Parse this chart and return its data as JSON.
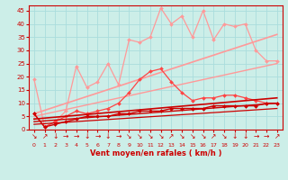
{
  "background_color": "#cceee8",
  "grid_color": "#aadddd",
  "xlabel": "Vent moyen/en rafales ( km/h )",
  "xlabel_color": "#cc0000",
  "tick_color": "#cc0000",
  "x_ticks": [
    0,
    1,
    2,
    3,
    4,
    5,
    6,
    7,
    8,
    9,
    10,
    11,
    12,
    13,
    14,
    15,
    16,
    17,
    18,
    19,
    20,
    21,
    22,
    23
  ],
  "ylim": [
    0,
    47
  ],
  "xlim": [
    -0.5,
    23.5
  ],
  "yticks": [
    0,
    5,
    10,
    15,
    20,
    25,
    30,
    35,
    40,
    45
  ],
  "series": [
    {
      "color": "#ff9999",
      "x": [
        0,
        1,
        2,
        3,
        4,
        5,
        6,
        7,
        8,
        9,
        10,
        11,
        12,
        13,
        14,
        15,
        16,
        17,
        18,
        19,
        20,
        21,
        22,
        23
      ],
      "y": [
        19,
        1,
        3,
        7,
        24,
        16,
        18,
        25,
        17,
        34,
        33,
        35,
        46,
        40,
        43,
        35,
        45,
        34,
        40,
        39,
        40,
        30,
        26,
        26
      ],
      "marker": "D",
      "markersize": 2,
      "linewidth": 0.9,
      "zorder": 2
    },
    {
      "color": "#ff9999",
      "x": [
        0,
        23
      ],
      "y": [
        6,
        36
      ],
      "marker": null,
      "markersize": 0,
      "linewidth": 1.2,
      "zorder": 2
    },
    {
      "color": "#ff9999",
      "x": [
        0,
        23
      ],
      "y": [
        5,
        25
      ],
      "marker": null,
      "markersize": 0,
      "linewidth": 1.0,
      "zorder": 2
    },
    {
      "color": "#ff4444",
      "x": [
        0,
        1,
        2,
        3,
        4,
        5,
        6,
        7,
        8,
        9,
        10,
        11,
        12,
        13,
        14,
        15,
        16,
        17,
        18,
        19,
        20,
        21,
        22,
        23
      ],
      "y": [
        6,
        1,
        3,
        5,
        7,
        6,
        7,
        8,
        10,
        14,
        19,
        22,
        23,
        18,
        14,
        11,
        12,
        12,
        13,
        13,
        12,
        11,
        10,
        10
      ],
      "marker": "D",
      "markersize": 2,
      "linewidth": 0.9,
      "zorder": 3
    },
    {
      "color": "#cc0000",
      "x": [
        0,
        23
      ],
      "y": [
        4,
        12
      ],
      "marker": null,
      "markersize": 0,
      "linewidth": 1.2,
      "zorder": 4
    },
    {
      "color": "#cc0000",
      "x": [
        0,
        23
      ],
      "y": [
        3,
        10
      ],
      "marker": null,
      "markersize": 0,
      "linewidth": 1.0,
      "zorder": 4
    },
    {
      "color": "#cc0000",
      "x": [
        0,
        23
      ],
      "y": [
        2,
        8
      ],
      "marker": null,
      "markersize": 0,
      "linewidth": 0.9,
      "zorder": 4
    },
    {
      "color": "#cc0000",
      "x": [
        0,
        1,
        2,
        3,
        4,
        5,
        6,
        7,
        8,
        9,
        10,
        11,
        12,
        13,
        14,
        15,
        16,
        17,
        18,
        19,
        20,
        21,
        22,
        23
      ],
      "y": [
        6,
        1,
        2,
        3,
        4,
        5,
        5,
        5,
        6,
        6,
        7,
        7,
        7,
        8,
        8,
        8,
        8,
        9,
        9,
        9,
        9,
        9,
        10,
        10
      ],
      "marker": "D",
      "markersize": 2,
      "linewidth": 1.0,
      "zorder": 5
    }
  ],
  "wind_arrows": {
    "x": [
      0,
      1,
      2,
      3,
      4,
      5,
      6,
      7,
      8,
      9,
      10,
      11,
      12,
      13,
      14,
      15,
      16,
      17,
      18,
      19,
      20,
      21,
      22,
      23
    ],
    "symbols": [
      "↘",
      "↗",
      "↓",
      "→",
      "→",
      "↓",
      "→",
      "↓",
      "→",
      "↘",
      "↘",
      "↘",
      "↘",
      "↗",
      "↘",
      "↘",
      "↘",
      "↗",
      "↘",
      "↓",
      "↓",
      "→",
      "→",
      "↗"
    ],
    "color": "#cc0000",
    "fontsize": 5.5
  }
}
